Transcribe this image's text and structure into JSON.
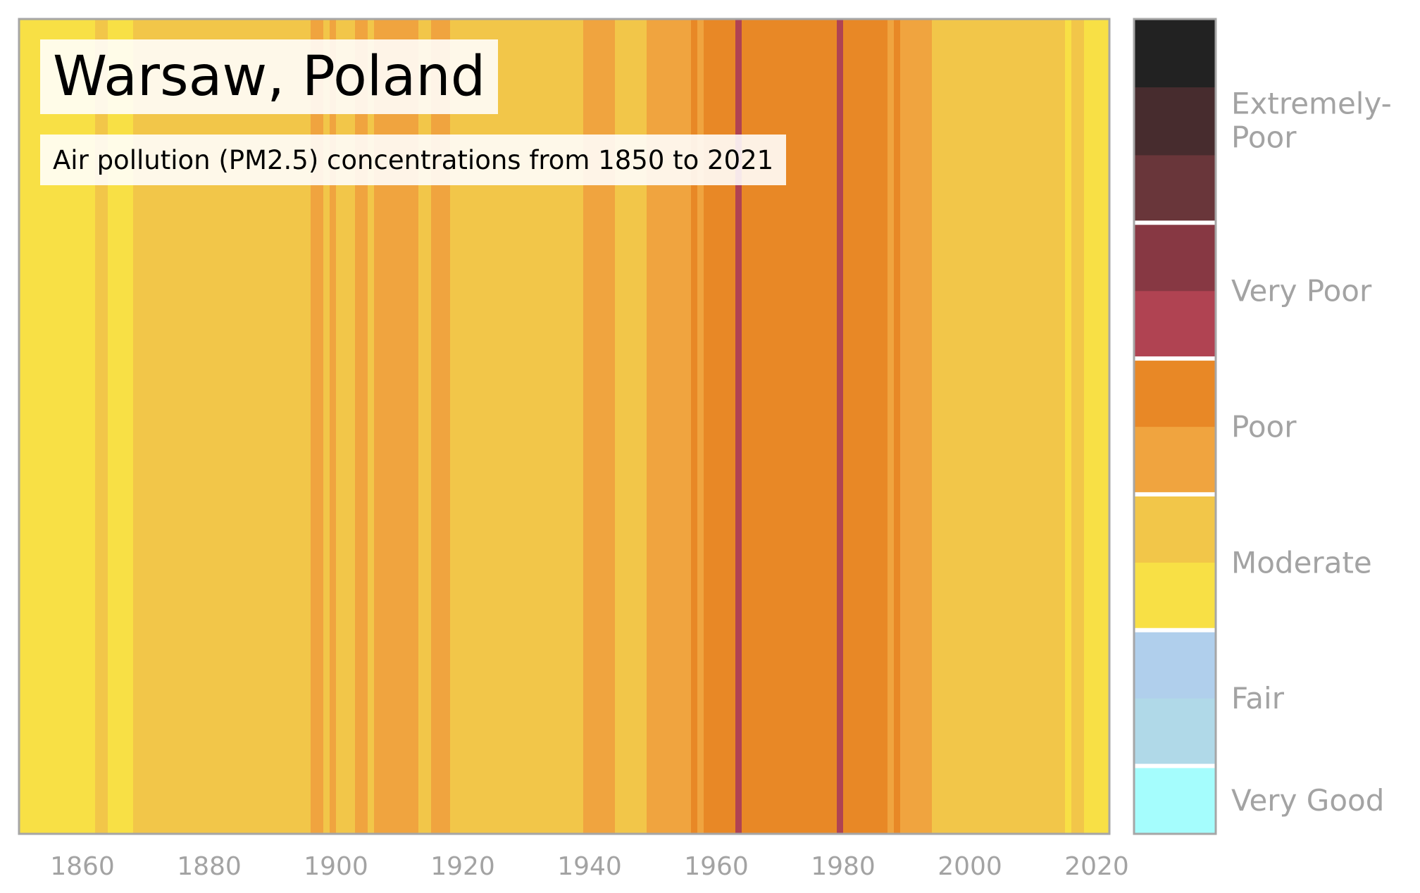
{
  "chart_data": {
    "type": "heatmap",
    "title": "Warsaw, Poland",
    "subtitle": "Air pollution (PM2.5) concentrations from 1850 to 2021",
    "xlim": [
      1850,
      2022
    ],
    "x_ticks": [
      "1860",
      "1880",
      "1900",
      "1920",
      "1940",
      "1960",
      "1980",
      "2000",
      "2020"
    ],
    "colors": {
      "very_good": "#a5fdfd",
      "fair_1": "#b0d9e8",
      "fair_2": "#b0cfec",
      "moderate_1": "#f8e045",
      "moderate_2": "#f2c649",
      "poor_1": "#f0a43f",
      "poor_2": "#e88826",
      "very_poor_1": "#b04352",
      "very_poor_2": "#873843",
      "extremely_poor_1": "#69363a",
      "extremely_poor_2": "#472c2e",
      "extremely_poor_3": "#222222"
    },
    "stripes": [
      {
        "start": 1850,
        "end": 1862,
        "category": "moderate_1"
      },
      {
        "start": 1862,
        "end": 1864,
        "category": "moderate_2"
      },
      {
        "start": 1864,
        "end": 1868,
        "category": "moderate_1"
      },
      {
        "start": 1868,
        "end": 1896,
        "category": "moderate_2"
      },
      {
        "start": 1896,
        "end": 1898,
        "category": "poor_1"
      },
      {
        "start": 1898,
        "end": 1899,
        "category": "moderate_2"
      },
      {
        "start": 1899,
        "end": 1900,
        "category": "poor_1"
      },
      {
        "start": 1900,
        "end": 1903,
        "category": "moderate_2"
      },
      {
        "start": 1903,
        "end": 1905,
        "category": "poor_1"
      },
      {
        "start": 1905,
        "end": 1906,
        "category": "moderate_2"
      },
      {
        "start": 1906,
        "end": 1913,
        "category": "poor_1"
      },
      {
        "start": 1913,
        "end": 1915,
        "category": "moderate_2"
      },
      {
        "start": 1915,
        "end": 1918,
        "category": "poor_1"
      },
      {
        "start": 1918,
        "end": 1939,
        "category": "moderate_2"
      },
      {
        "start": 1939,
        "end": 1944,
        "category": "poor_1"
      },
      {
        "start": 1944,
        "end": 1949,
        "category": "moderate_2"
      },
      {
        "start": 1949,
        "end": 1956,
        "category": "poor_1"
      },
      {
        "start": 1956,
        "end": 1957,
        "category": "poor_2"
      },
      {
        "start": 1957,
        "end": 1958,
        "category": "poor_1"
      },
      {
        "start": 1958,
        "end": 1963,
        "category": "poor_2"
      },
      {
        "start": 1963,
        "end": 1964,
        "category": "very_poor_1"
      },
      {
        "start": 1964,
        "end": 1979,
        "category": "poor_2"
      },
      {
        "start": 1979,
        "end": 1980,
        "category": "very_poor_1"
      },
      {
        "start": 1980,
        "end": 1987,
        "category": "poor_2"
      },
      {
        "start": 1987,
        "end": 1988,
        "category": "poor_1"
      },
      {
        "start": 1988,
        "end": 1989,
        "category": "poor_2"
      },
      {
        "start": 1989,
        "end": 1994,
        "category": "poor_1"
      },
      {
        "start": 1994,
        "end": 2015,
        "category": "moderate_2"
      },
      {
        "start": 2015,
        "end": 2016,
        "category": "moderate_1"
      },
      {
        "start": 2016,
        "end": 2018,
        "category": "moderate_2"
      },
      {
        "start": 2018,
        "end": 2022,
        "category": "moderate_1"
      }
    ],
    "legend": {
      "colorbar": [
        "very_good",
        "fair_1",
        "fair_2",
        "moderate_1",
        "moderate_2",
        "poor_1",
        "poor_2",
        "very_poor_1",
        "very_poor_2",
        "extremely_poor_1",
        "extremely_poor_2",
        "extremely_poor_3"
      ],
      "labels": [
        {
          "text": "Very Good"
        },
        {
          "text": "Fair"
        },
        {
          "text": "Moderate"
        },
        {
          "text": "Poor"
        },
        {
          "text": "Very Poor"
        },
        {
          "text": "Extremely-Poor"
        }
      ]
    },
    "grid": false
  }
}
